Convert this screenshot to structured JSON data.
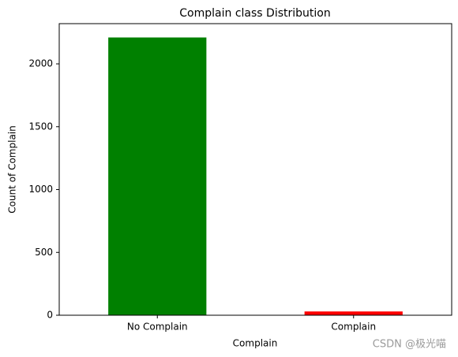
{
  "chart_data": {
    "type": "bar",
    "title": "Complain class Distribution",
    "x_label": "Complain",
    "y_label": "Count of Complain",
    "categories": [
      "No Complain",
      "Complain"
    ],
    "values": [
      2210,
      30
    ],
    "colors": [
      "#008000",
      "#ff0000"
    ],
    "ylim": [
      0,
      2320
    ],
    "yticks": [
      0,
      500,
      1000,
      1500,
      2000
    ],
    "grid": false
  },
  "watermark": "CSDN @极光喵"
}
